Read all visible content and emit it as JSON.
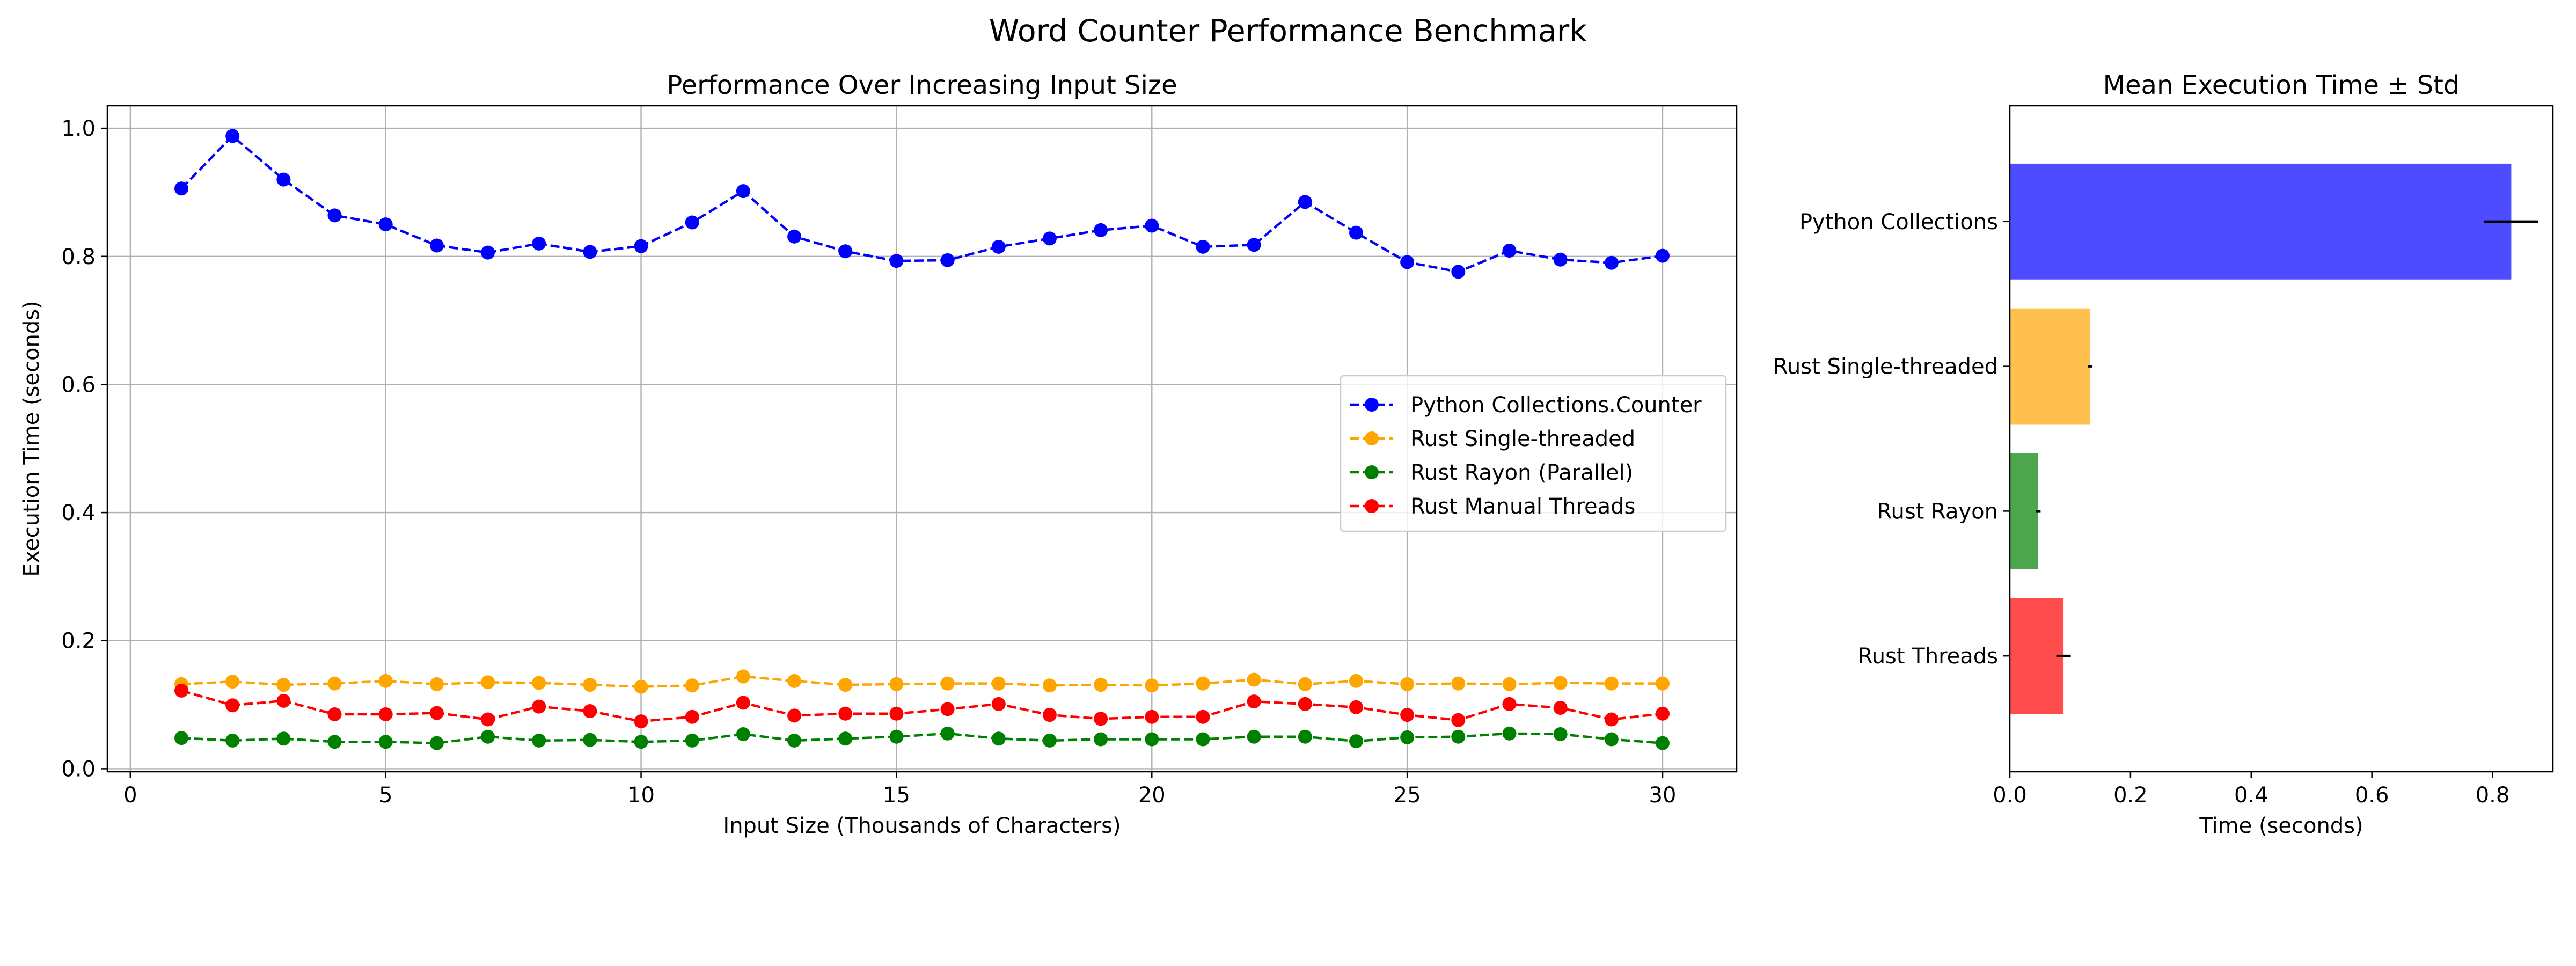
{
  "figure": {
    "suptitle": "Word Counter Performance Benchmark"
  },
  "chart_data": [
    {
      "type": "line",
      "title": "Performance Over Increasing Input Size",
      "xlabel": "Input Size (Thousands of Characters)",
      "ylabel": "Execution Time (seconds)",
      "xlim": [
        -0.45,
        31.45
      ],
      "ylim": [
        -0.0047,
        1.0353
      ],
      "xticks": [
        0,
        5,
        10,
        15,
        20,
        25,
        30
      ],
      "yticks": [
        0.0,
        0.2,
        0.4,
        0.6,
        0.8,
        1.0
      ],
      "xtick_labels": [
        "0",
        "5",
        "10",
        "15",
        "20",
        "25",
        "30"
      ],
      "ytick_labels": [
        "0.0",
        "0.2",
        "0.4",
        "0.6",
        "0.8",
        "1.0"
      ],
      "grid": true,
      "legend_position": "center-right",
      "line_style": "dashed",
      "marker": "circle",
      "x": [
        1,
        2,
        3,
        4,
        5,
        6,
        7,
        8,
        9,
        10,
        11,
        12,
        13,
        14,
        15,
        16,
        17,
        18,
        19,
        20,
        21,
        22,
        23,
        24,
        25,
        26,
        27,
        28,
        29,
        30
      ],
      "series": [
        {
          "name": "Python Collections.Counter",
          "color": "#0000ff",
          "values": [
            0.906,
            0.988,
            0.92,
            0.864,
            0.85,
            0.817,
            0.806,
            0.82,
            0.807,
            0.816,
            0.853,
            0.902,
            0.831,
            0.808,
            0.793,
            0.794,
            0.815,
            0.828,
            0.841,
            0.848,
            0.815,
            0.818,
            0.885,
            0.837,
            0.791,
            0.776,
            0.809,
            0.795,
            0.79,
            0.801
          ]
        },
        {
          "name": "Rust Single-threaded",
          "color": "#ffa500",
          "values": [
            0.132,
            0.136,
            0.131,
            0.133,
            0.137,
            0.132,
            0.135,
            0.134,
            0.131,
            0.128,
            0.13,
            0.144,
            0.137,
            0.131,
            0.132,
            0.133,
            0.133,
            0.13,
            0.131,
            0.13,
            0.133,
            0.139,
            0.132,
            0.137,
            0.132,
            0.133,
            0.132,
            0.134,
            0.133,
            0.133
          ]
        },
        {
          "name": "Rust Rayon (Parallel)",
          "color": "#008000",
          "values": [
            0.048,
            0.044,
            0.047,
            0.042,
            0.042,
            0.04,
            0.05,
            0.044,
            0.045,
            0.042,
            0.044,
            0.054,
            0.044,
            0.047,
            0.05,
            0.055,
            0.047,
            0.044,
            0.046,
            0.046,
            0.046,
            0.05,
            0.05,
            0.043,
            0.049,
            0.05,
            0.055,
            0.054,
            0.046,
            0.04
          ]
        },
        {
          "name": "Rust Manual Threads",
          "color": "#ff0000",
          "values": [
            0.122,
            0.099,
            0.106,
            0.085,
            0.085,
            0.087,
            0.077,
            0.097,
            0.09,
            0.074,
            0.081,
            0.103,
            0.083,
            0.086,
            0.086,
            0.093,
            0.101,
            0.084,
            0.078,
            0.081,
            0.081,
            0.105,
            0.101,
            0.096,
            0.084,
            0.076,
            0.101,
            0.095,
            0.077,
            0.086
          ]
        }
      ]
    },
    {
      "type": "bar",
      "orientation": "horizontal",
      "title": "Mean Execution Time ± Std",
      "xlabel": "Time (seconds)",
      "ylabel": "",
      "xlim": [
        0,
        0.9
      ],
      "xticks": [
        0.0,
        0.2,
        0.4,
        0.6,
        0.8
      ],
      "xtick_labels": [
        "0.0",
        "0.2",
        "0.4",
        "0.6",
        "0.8"
      ],
      "grid": false,
      "categories": [
        "Python Collections",
        "Rust Single-threaded",
        "Rust Rayon",
        "Rust Threads"
      ],
      "values": [
        0.831,
        0.133,
        0.047,
        0.089
      ],
      "errors": [
        0.045,
        0.004,
        0.004,
        0.012
      ],
      "colors": [
        "#4d4dff",
        "#ffc04d",
        "#4da64d",
        "#ff4d4d"
      ]
    }
  ]
}
